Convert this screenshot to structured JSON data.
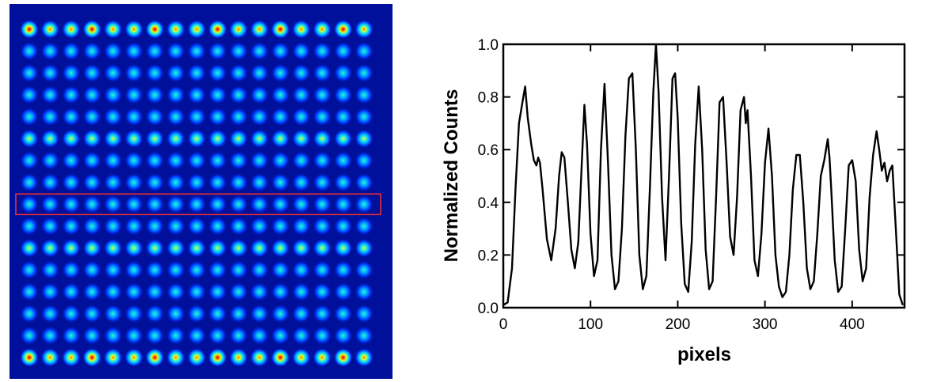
{
  "heatmap": {
    "grid_rows": 16,
    "grid_cols": 17,
    "background_color": "#00109a",
    "highlight_row": 8,
    "highlight_box_color": "#e83030",
    "colormap": [
      "#001590",
      "#0033ff",
      "#00aaff",
      "#30f0d8",
      "#e8f818",
      "#ff6a00",
      "#d00000"
    ]
  },
  "chart_data": {
    "type": "line",
    "title": "",
    "xlabel": "pixels",
    "ylabel": "Normalized Counts",
    "xlim": [
      0,
      460
    ],
    "ylim": [
      0,
      1.0
    ],
    "x_ticks": [
      0,
      100,
      200,
      300,
      400
    ],
    "y_ticks": [
      0.0,
      0.2,
      0.4,
      0.6,
      0.8,
      1.0
    ],
    "x_tick_labels": [
      "0",
      "100",
      "200",
      "300",
      "400"
    ],
    "y_tick_labels": [
      "0.0",
      "0.2",
      "0.4",
      "0.6",
      "0.8",
      "1.0"
    ],
    "grid": false,
    "line_color": "#000000",
    "series": [
      {
        "x": [
          0,
          5,
          10,
          14,
          18,
          22,
          25,
          28,
          32,
          35,
          38,
          40,
          42,
          45,
          50,
          55,
          60,
          64,
          67,
          70,
          74,
          78,
          82,
          86,
          90,
          93,
          96,
          100,
          104,
          108,
          112,
          116,
          120,
          124,
          128,
          132,
          136,
          140,
          144,
          148,
          152,
          156,
          160,
          164,
          168,
          172,
          175,
          178,
          182,
          186,
          190,
          194,
          197,
          200,
          204,
          208,
          212,
          216,
          220,
          224,
          228,
          232,
          236,
          240,
          244,
          248,
          252,
          256,
          260,
          264,
          268,
          272,
          276,
          278,
          280,
          284,
          288,
          292,
          296,
          300,
          304,
          308,
          312,
          316,
          320,
          324,
          328,
          332,
          336,
          340,
          344,
          348,
          352,
          356,
          360,
          364,
          368,
          372,
          374,
          376,
          380,
          384,
          388,
          392,
          396,
          400,
          404,
          408,
          412,
          416,
          420,
          424,
          428,
          431,
          434,
          437,
          440,
          443,
          446,
          450,
          454,
          458
        ],
        "y": [
          0.01,
          0.02,
          0.15,
          0.45,
          0.7,
          0.78,
          0.84,
          0.72,
          0.62,
          0.56,
          0.54,
          0.57,
          0.55,
          0.45,
          0.26,
          0.18,
          0.3,
          0.5,
          0.59,
          0.57,
          0.4,
          0.22,
          0.15,
          0.25,
          0.55,
          0.77,
          0.62,
          0.28,
          0.12,
          0.18,
          0.6,
          0.85,
          0.55,
          0.2,
          0.07,
          0.1,
          0.3,
          0.65,
          0.87,
          0.89,
          0.6,
          0.2,
          0.07,
          0.12,
          0.45,
          0.82,
          1.0,
          0.82,
          0.42,
          0.18,
          0.5,
          0.87,
          0.89,
          0.72,
          0.32,
          0.09,
          0.06,
          0.25,
          0.62,
          0.84,
          0.6,
          0.22,
          0.07,
          0.1,
          0.42,
          0.78,
          0.8,
          0.55,
          0.27,
          0.2,
          0.42,
          0.75,
          0.8,
          0.7,
          0.75,
          0.5,
          0.18,
          0.12,
          0.28,
          0.55,
          0.68,
          0.5,
          0.2,
          0.08,
          0.04,
          0.06,
          0.2,
          0.45,
          0.58,
          0.58,
          0.4,
          0.15,
          0.07,
          0.1,
          0.28,
          0.5,
          0.56,
          0.64,
          0.57,
          0.45,
          0.18,
          0.06,
          0.08,
          0.3,
          0.54,
          0.56,
          0.48,
          0.22,
          0.1,
          0.15,
          0.42,
          0.58,
          0.67,
          0.6,
          0.52,
          0.55,
          0.48,
          0.52,
          0.54,
          0.3,
          0.05,
          0.01
        ]
      }
    ]
  }
}
